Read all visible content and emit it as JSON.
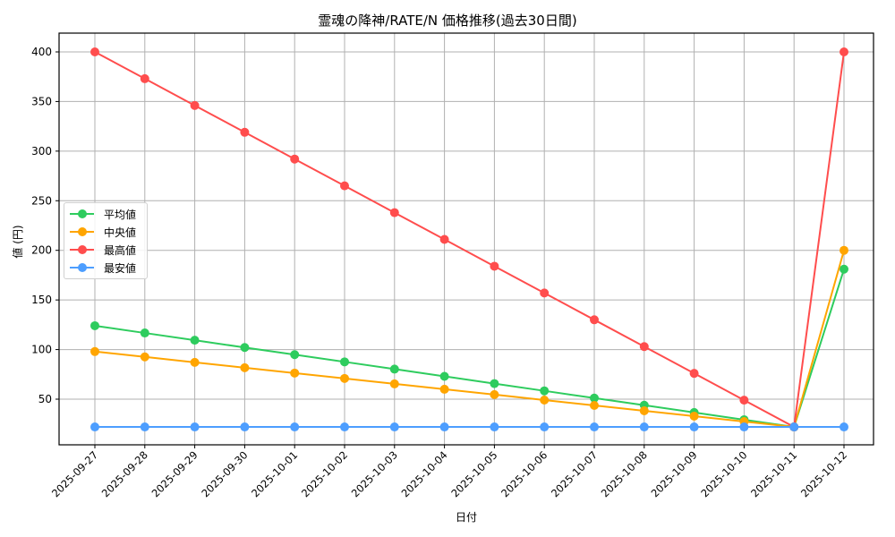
{
  "chart_data": {
    "type": "line",
    "title": "霊魂の降神/RATE/N 価格推移(過去30日間)",
    "xlabel": "日付",
    "ylabel": "値 (円)",
    "ylim": [
      9,
      419
    ],
    "yticks": [
      50,
      100,
      150,
      200,
      250,
      300,
      350,
      400
    ],
    "grid": true,
    "legend_position": "center left",
    "categories": [
      "2025-09-27",
      "2025-09-28",
      "2025-09-29",
      "2025-09-30",
      "2025-10-01",
      "2025-10-02",
      "2025-10-03",
      "2025-10-04",
      "2025-10-05",
      "2025-10-06",
      "2025-10-07",
      "2025-10-08",
      "2025-10-09",
      "2025-10-10",
      "2025-10-11",
      "2025-10-12"
    ],
    "series": [
      {
        "name": "平均値",
        "color": "#2ecc5e",
        "values": [
          124,
          116.7,
          109.4,
          102.1,
          94.9,
          87.6,
          80.3,
          73,
          65.7,
          58.4,
          51.1,
          43.9,
          36.6,
          29.3,
          22,
          181
        ]
      },
      {
        "name": "中央値",
        "color": "#ffa500",
        "values": [
          98,
          92.6,
          87.1,
          81.7,
          76.3,
          70.9,
          65.4,
          60,
          54.6,
          49.1,
          43.7,
          38.3,
          32.9,
          27.4,
          22,
          200
        ]
      },
      {
        "name": "最高値",
        "color": "#ff4d4d",
        "values": [
          400,
          373,
          346,
          319,
          292,
          265,
          238,
          211,
          184,
          157,
          130,
          103,
          76,
          49,
          22,
          400
        ]
      },
      {
        "name": "最安値",
        "color": "#4d9eff",
        "values": [
          22,
          22,
          22,
          22,
          22,
          22,
          22,
          22,
          22,
          22,
          22,
          22,
          22,
          22,
          22,
          22
        ]
      }
    ]
  }
}
